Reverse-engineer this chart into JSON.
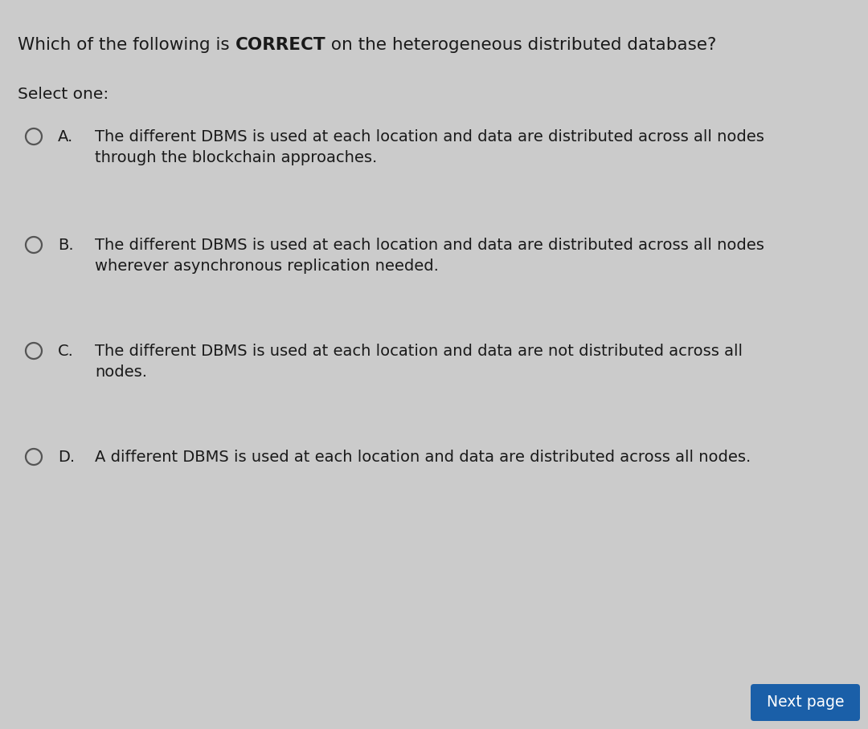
{
  "bg_color": "#cbcbcb",
  "title_normal_prefix": "Which of the following is ",
  "title_bold": "CORRECT",
  "title_normal_suffix": " on the heterogeneous distributed database?",
  "select_label": "Select one:",
  "options": [
    {
      "letter": "A.",
      "line1": "The different DBMS is used at each location and data are distributed across all nodes",
      "line2": "through the blockchain approaches."
    },
    {
      "letter": "B.",
      "line1": "The different DBMS is used at each location and data are distributed across all nodes",
      "line2": "wherever asynchronous replication needed."
    },
    {
      "letter": "C.",
      "line1": "The different DBMS is used at each location and data are not distributed across all",
      "line2": "nodes."
    },
    {
      "letter": "D.",
      "line1": "A different DBMS is used at each location and data are distributed across all nodes.",
      "line2": null
    }
  ],
  "next_button_text": "Next page",
  "next_button_bg": "#1a5fa8",
  "next_button_text_color": "#ffffff",
  "text_color": "#1a1a1a",
  "circle_color": "#555555",
  "font_size_title": 15.5,
  "font_size_select": 14.5,
  "font_size_option": 14.0,
  "font_size_letter": 14.0
}
